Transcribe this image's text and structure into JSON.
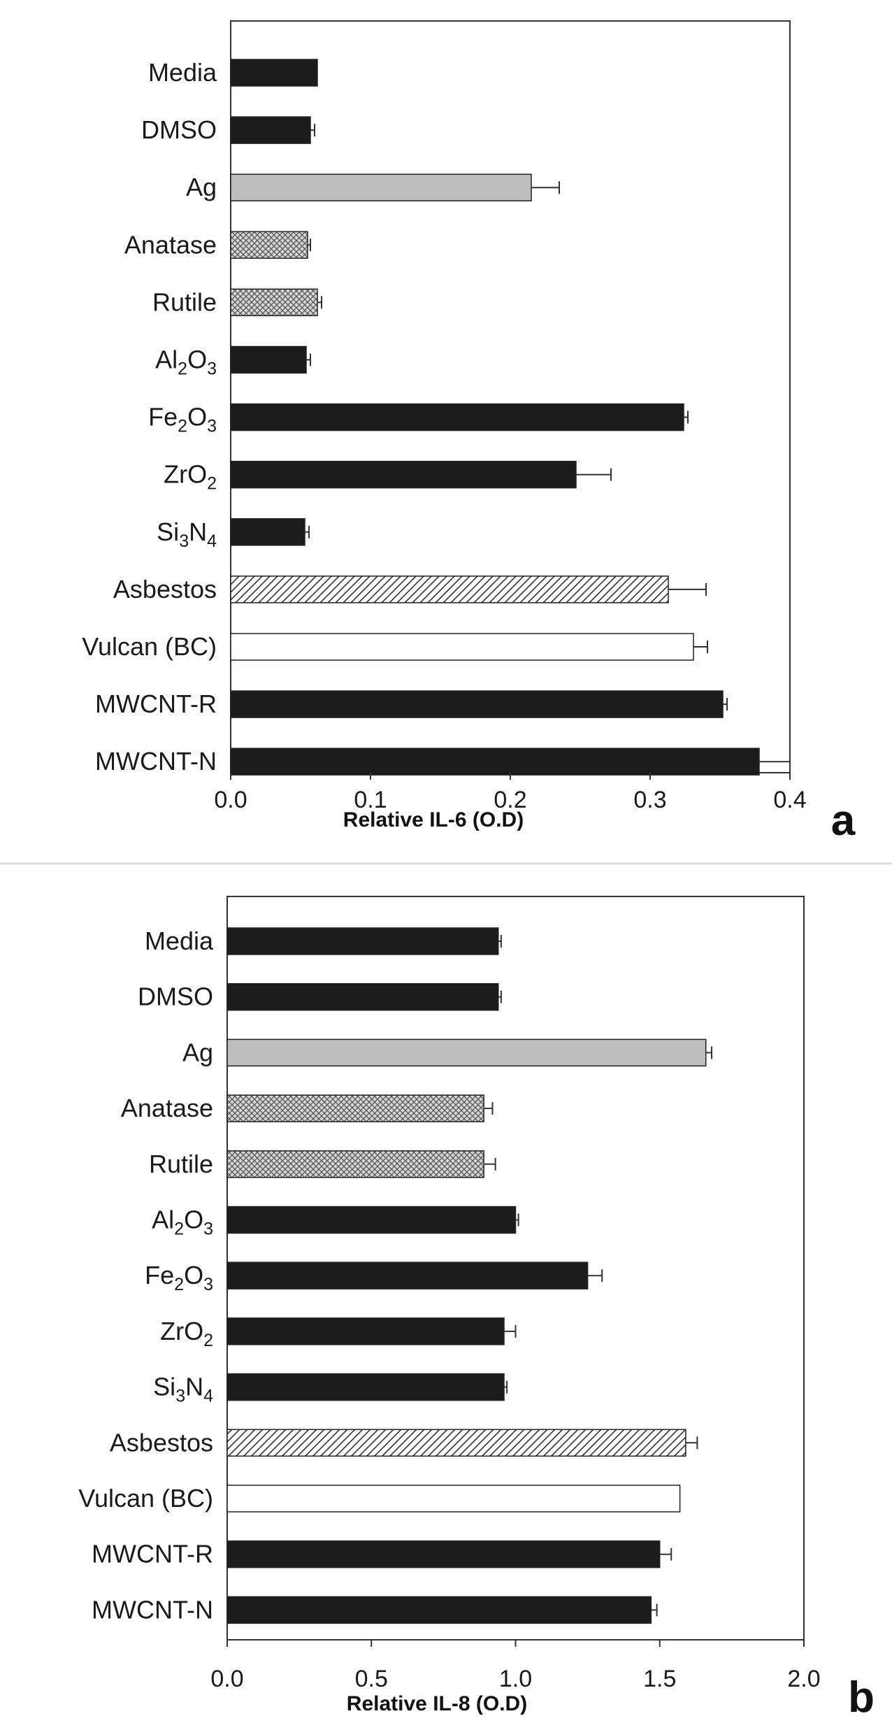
{
  "chart_data": [
    {
      "type": "bar",
      "orientation": "horizontal",
      "panel": "a",
      "xlabel": "Relative IL-6 (O.D)",
      "xlim": [
        0,
        0.4
      ],
      "xticks": [
        "0.0",
        "0.1",
        "0.2",
        "0.3",
        "0.4"
      ],
      "grid": false,
      "categories": [
        {
          "label": "Media"
        },
        {
          "label": "DMSO"
        },
        {
          "label": "Ag"
        },
        {
          "label": "Anatase"
        },
        {
          "label": "Rutile"
        },
        {
          "base": "Al",
          "s1": "2",
          "mid": "O",
          "s2": "3"
        },
        {
          "base": "Fe",
          "s1": "2",
          "mid": "O",
          "s2": "3"
        },
        {
          "base": "ZrO",
          "s1": "2",
          "mid": "",
          "s2": ""
        },
        {
          "base": "Si",
          "s1": "3",
          "mid": "N",
          "s2": "4"
        },
        {
          "label": "Asbestos"
        },
        {
          "label": "Vulcan (BC)"
        },
        {
          "label": "MWCNT-R"
        },
        {
          "label": "MWCNT-N"
        }
      ],
      "values": [
        0.062,
        0.057,
        0.215,
        0.055,
        0.062,
        0.054,
        0.324,
        0.247,
        0.053,
        0.313,
        0.331,
        0.352,
        0.378
      ],
      "errors": [
        0.0,
        0.003,
        0.02,
        0.002,
        0.003,
        0.003,
        0.003,
        0.025,
        0.003,
        0.027,
        0.01,
        0.003,
        0.022
      ],
      "patterns": [
        "dark",
        "dark",
        "gray",
        "check",
        "check",
        "dark",
        "dark",
        "dark",
        "dark",
        "hatch",
        "white",
        "dark",
        "dark"
      ]
    },
    {
      "type": "bar",
      "orientation": "horizontal",
      "panel": "b",
      "xlabel": "Relative IL-8 (O.D)",
      "xlim": [
        0,
        2.0
      ],
      "xticks": [
        "0.0",
        "0.5",
        "1.0",
        "1.5",
        "2.0"
      ],
      "grid": false,
      "categories": [
        {
          "label": "Media"
        },
        {
          "label": "DMSO"
        },
        {
          "label": "Ag"
        },
        {
          "label": "Anatase"
        },
        {
          "label": "Rutile"
        },
        {
          "base": "Al",
          "s1": "2",
          "mid": "O",
          "s2": "3"
        },
        {
          "base": "Fe",
          "s1": "2",
          "mid": "O",
          "s2": "3"
        },
        {
          "base": "ZrO",
          "s1": "2",
          "mid": "",
          "s2": ""
        },
        {
          "base": "Si",
          "s1": "3",
          "mid": "N",
          "s2": "4"
        },
        {
          "label": "Asbestos"
        },
        {
          "label": "Vulcan (BC)"
        },
        {
          "label": "MWCNT-R"
        },
        {
          "label": "MWCNT-N"
        }
      ],
      "values": [
        0.94,
        0.94,
        1.66,
        0.89,
        0.89,
        1.0,
        1.25,
        0.96,
        0.96,
        1.59,
        1.57,
        1.5,
        1.47
      ],
      "errors": [
        0.01,
        0.01,
        0.02,
        0.03,
        0.04,
        0.01,
        0.05,
        0.04,
        0.01,
        0.04,
        0.0,
        0.04,
        0.02
      ],
      "patterns": [
        "dark",
        "dark",
        "gray",
        "check",
        "check",
        "dark",
        "dark",
        "dark",
        "dark",
        "hatch",
        "white",
        "dark",
        "dark"
      ]
    }
  ]
}
